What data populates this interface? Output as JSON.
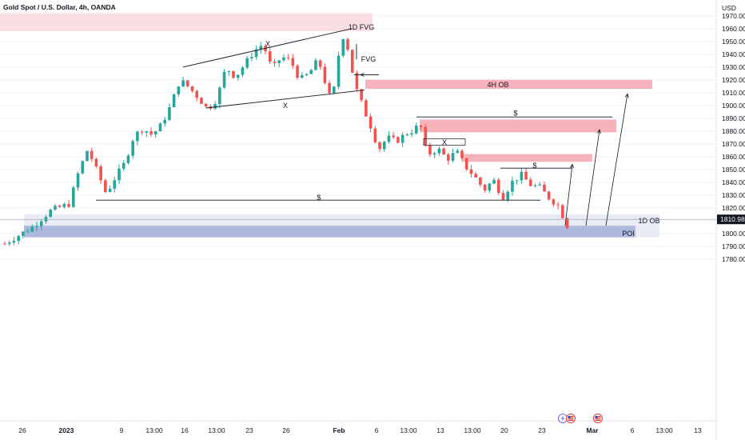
{
  "header": {
    "title": "Gold Spot / U.S. Dollar, 4h, OANDA",
    "currency": "USD"
  },
  "colors": {
    "up": "#26a69a",
    "down": "#ef5350",
    "wick": "#131722",
    "zone_red": "#f28b97",
    "zone_red_light": "#f7c9cf",
    "zone_blue": "#9aa8d4",
    "zone_blue_light": "#dfe4f1",
    "grid": "#f0f3fa",
    "line": "#131722"
  },
  "icons": [
    "lightning-icon",
    "us-flag-icon"
  ],
  "chart_data": {
    "type": "candlestick",
    "title": "Gold Spot / U.S. Dollar, 4h, OANDA",
    "y_unit": "USD",
    "ylim": [
      1776,
      1977
    ],
    "y_ticks": [
      1780,
      1790,
      1800,
      1810,
      1820,
      1830,
      1840,
      1850,
      1860,
      1870,
      1880,
      1890,
      1900,
      1910,
      1920,
      1930,
      1940,
      1950,
      1960,
      1970
    ],
    "y_tick_labels": [
      "1780.000",
      "1790.000",
      "1800.000",
      "1810.000",
      "1820.000",
      "1830.000",
      "1840.000",
      "1850.000",
      "1860.000",
      "1870.000",
      "1880.000",
      "1890.000",
      "1900.000",
      "1910.000",
      "1920.000",
      "1930.000",
      "1940.000",
      "1950.000",
      "1960.000",
      "1970.000"
    ],
    "x_tick_labels": [
      "26",
      "2023",
      "9",
      "13:00",
      "16",
      "13:00",
      "23",
      "26",
      "Feb",
      "6",
      "13:00",
      "13",
      "13:00",
      "20",
      "23",
      "Mar",
      "6",
      "13:00",
      "13"
    ],
    "current_price": "1810.985",
    "price_path": [
      [
        0,
        1792
      ],
      [
        6,
        1805
      ],
      [
        10,
        1818
      ],
      [
        14,
        1823
      ],
      [
        16,
        1848
      ],
      [
        18,
        1866
      ],
      [
        21,
        1840
      ],
      [
        22,
        1831
      ],
      [
        24,
        1844
      ],
      [
        26,
        1855
      ],
      [
        28,
        1876
      ],
      [
        30,
        1882
      ],
      [
        32,
        1877
      ],
      [
        34,
        1885
      ],
      [
        36,
        1900
      ],
      [
        38,
        1920
      ],
      [
        40,
        1914
      ],
      [
        42,
        1906
      ],
      [
        44,
        1897
      ],
      [
        46,
        1905
      ],
      [
        48,
        1930
      ],
      [
        50,
        1922
      ],
      [
        52,
        1932
      ],
      [
        54,
        1942
      ],
      [
        56,
        1948
      ],
      [
        58,
        1928
      ],
      [
        60,
        1938
      ],
      [
        62,
        1935
      ],
      [
        64,
        1920
      ],
      [
        66,
        1925
      ],
      [
        68,
        1936
      ],
      [
        70,
        1912
      ],
      [
        71,
        1902
      ],
      [
        73,
        1955
      ],
      [
        74,
        1952
      ],
      [
        76,
        1915
      ],
      [
        78,
        1896
      ],
      [
        80,
        1878
      ],
      [
        81,
        1865
      ],
      [
        83,
        1875
      ],
      [
        85,
        1872
      ],
      [
        87,
        1878
      ],
      [
        89,
        1881
      ],
      [
        90,
        1888
      ],
      [
        91,
        1868
      ],
      [
        92,
        1862
      ],
      [
        94,
        1866
      ],
      [
        96,
        1858
      ],
      [
        98,
        1864
      ],
      [
        100,
        1852
      ],
      [
        102,
        1844
      ],
      [
        104,
        1834
      ],
      [
        106,
        1842
      ],
      [
        108,
        1828
      ],
      [
        110,
        1840
      ],
      [
        112,
        1846
      ],
      [
        114,
        1838
      ],
      [
        116,
        1836
      ],
      [
        118,
        1828
      ],
      [
        120,
        1822
      ],
      [
        122,
        1806
      ]
    ],
    "zones": [
      {
        "label": "1D FVG",
        "y_top": 1972,
        "y_bottom": 1958,
        "style": "light-red"
      },
      {
        "label": "4H OB",
        "y_top": 1920,
        "y_bottom": 1913,
        "style": "red"
      },
      {
        "label": "",
        "y_top": 1889,
        "y_bottom": 1879,
        "style": "red"
      },
      {
        "label": "",
        "y_top": 1862,
        "y_bottom": 1856,
        "style": "red"
      },
      {
        "label": "1D OB",
        "y_top": 1815,
        "y_bottom": 1797,
        "style": "light-blue"
      },
      {
        "label": "POI",
        "y_top": 1806,
        "y_bottom": 1797,
        "style": "blue"
      }
    ],
    "annotations": [
      "1D FVG",
      "FVG",
      "4H OB",
      "X",
      "X",
      "$",
      "X",
      "$",
      "$",
      "1D OB",
      "POI"
    ]
  }
}
